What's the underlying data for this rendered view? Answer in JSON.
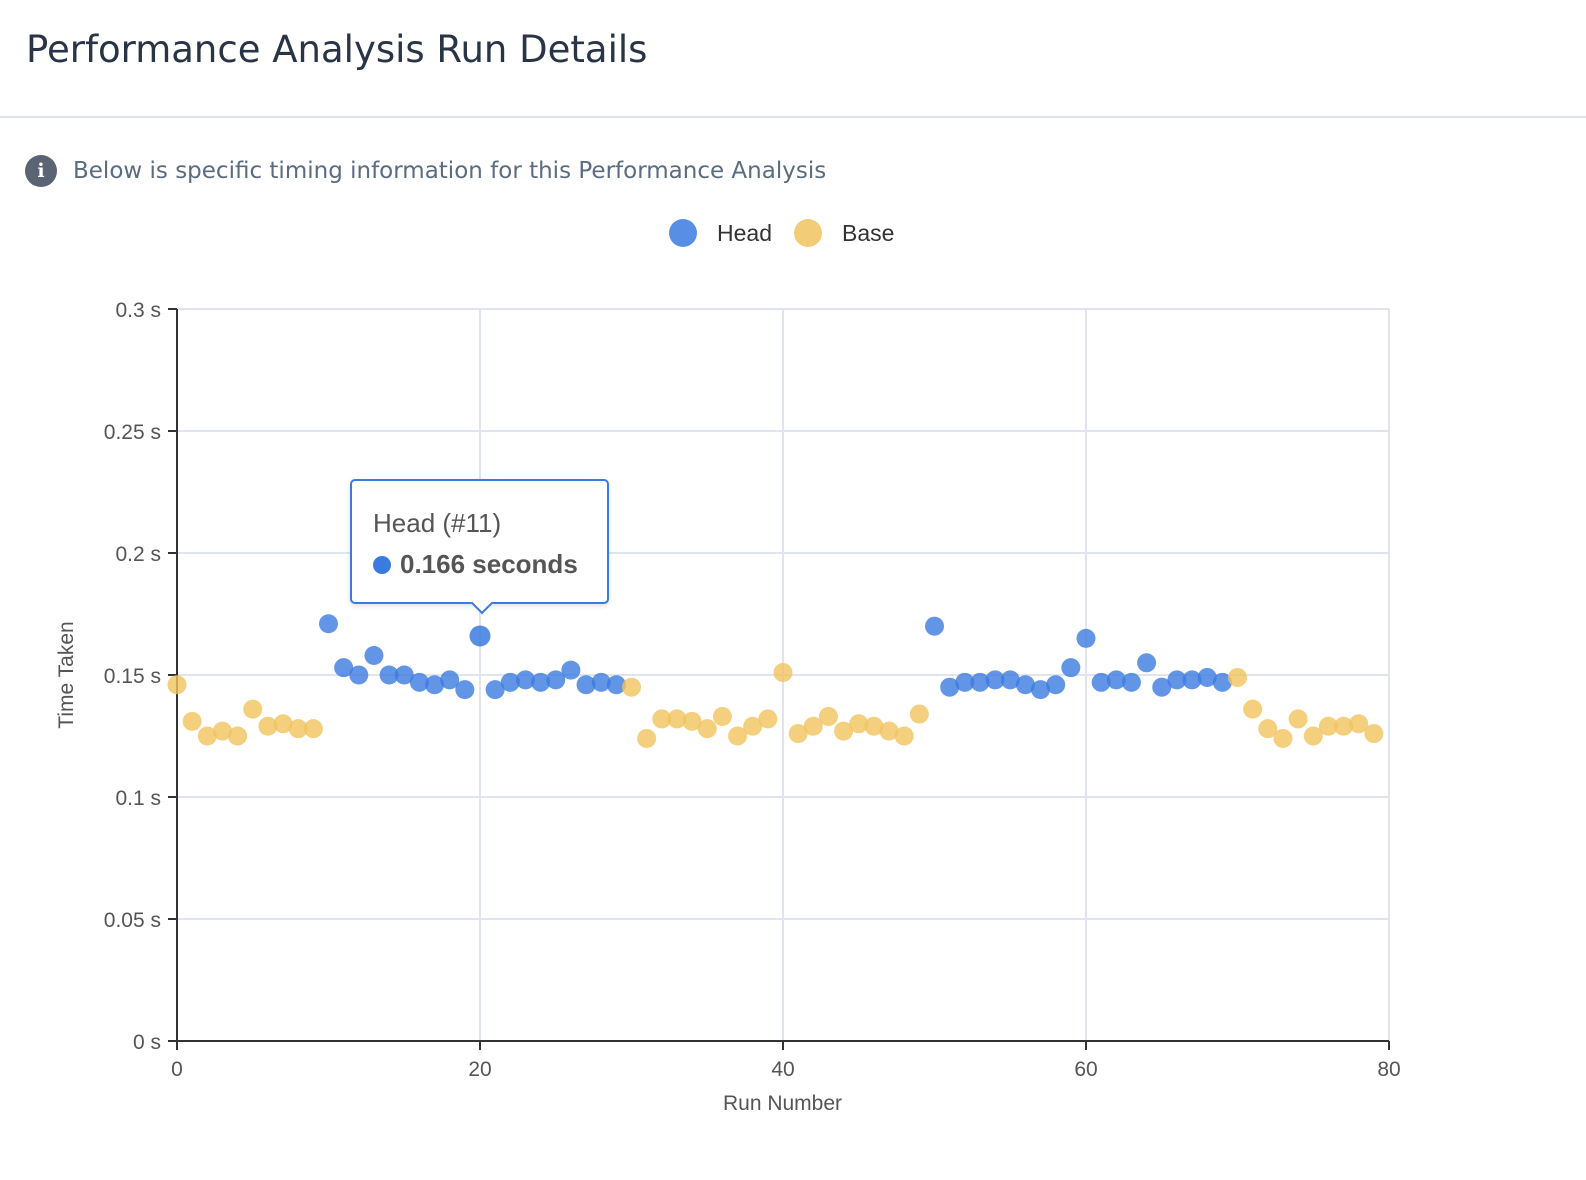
{
  "page": {
    "title": "Performance Analysis Run Details",
    "info_text": "Below is specific timing information for this Performance Analysis",
    "info_icon": "info-icon"
  },
  "tooltip": {
    "title": "Head (#11)",
    "value": "0.166 seconds"
  },
  "colors": {
    "head": "#3b7be0",
    "base": "#f0c35e",
    "grid": "#dfe4ef",
    "axis": "#333333",
    "text": "#555555"
  },
  "chart_data": {
    "type": "scatter",
    "xlabel": "Run Number",
    "ylabel": "Time Taken",
    "xlim": [
      0,
      80
    ],
    "ylim": [
      0,
      0.3
    ],
    "x_ticks": [
      0,
      20,
      40,
      60,
      80
    ],
    "x_tick_labels": [
      "0",
      "20",
      "40",
      "60",
      "80"
    ],
    "y_ticks": [
      0,
      0.05,
      0.1,
      0.15,
      0.2,
      0.25,
      0.3
    ],
    "y_tick_labels": [
      "0 s",
      "0.05 s",
      "0.1 s",
      "0.15 s",
      "0.2 s",
      "0.25 s",
      "0.3 s"
    ],
    "grid": true,
    "legend_position": "top-center",
    "series": [
      {
        "name": "Head",
        "color": "#3b7be0",
        "points": [
          [
            10,
            0.171
          ],
          [
            11,
            0.153
          ],
          [
            12,
            0.15
          ],
          [
            13,
            0.158
          ],
          [
            14,
            0.15
          ],
          [
            15,
            0.15
          ],
          [
            16,
            0.147
          ],
          [
            17,
            0.146
          ],
          [
            18,
            0.148
          ],
          [
            19,
            0.144
          ],
          [
            20,
            0.166
          ],
          [
            21,
            0.144
          ],
          [
            22,
            0.147
          ],
          [
            23,
            0.148
          ],
          [
            24,
            0.147
          ],
          [
            25,
            0.148
          ],
          [
            26,
            0.152
          ],
          [
            27,
            0.146
          ],
          [
            28,
            0.147
          ],
          [
            29,
            0.146
          ],
          [
            50,
            0.17
          ],
          [
            51,
            0.145
          ],
          [
            52,
            0.147
          ],
          [
            53,
            0.147
          ],
          [
            54,
            0.148
          ],
          [
            55,
            0.148
          ],
          [
            56,
            0.146
          ],
          [
            57,
            0.144
          ],
          [
            58,
            0.146
          ],
          [
            59,
            0.153
          ],
          [
            60,
            0.165
          ],
          [
            61,
            0.147
          ],
          [
            62,
            0.148
          ],
          [
            63,
            0.147
          ],
          [
            64,
            0.155
          ],
          [
            65,
            0.145
          ],
          [
            66,
            0.148
          ],
          [
            67,
            0.148
          ],
          [
            68,
            0.149
          ],
          [
            69,
            0.147
          ]
        ]
      },
      {
        "name": "Base",
        "color": "#f0c35e",
        "points": [
          [
            0,
            0.146
          ],
          [
            1,
            0.131
          ],
          [
            2,
            0.125
          ],
          [
            3,
            0.127
          ],
          [
            4,
            0.125
          ],
          [
            5,
            0.136
          ],
          [
            6,
            0.129
          ],
          [
            7,
            0.13
          ],
          [
            8,
            0.128
          ],
          [
            9,
            0.128
          ],
          [
            30,
            0.145
          ],
          [
            31,
            0.124
          ],
          [
            32,
            0.132
          ],
          [
            33,
            0.132
          ],
          [
            34,
            0.131
          ],
          [
            35,
            0.128
          ],
          [
            36,
            0.133
          ],
          [
            37,
            0.125
          ],
          [
            38,
            0.129
          ],
          [
            39,
            0.132
          ],
          [
            40,
            0.151
          ],
          [
            41,
            0.126
          ],
          [
            42,
            0.129
          ],
          [
            43,
            0.133
          ],
          [
            44,
            0.127
          ],
          [
            45,
            0.13
          ],
          [
            46,
            0.129
          ],
          [
            47,
            0.127
          ],
          [
            48,
            0.125
          ],
          [
            49,
            0.134
          ],
          [
            70,
            0.149
          ],
          [
            71,
            0.136
          ],
          [
            72,
            0.128
          ],
          [
            73,
            0.124
          ],
          [
            74,
            0.132
          ],
          [
            75,
            0.125
          ],
          [
            76,
            0.129
          ],
          [
            77,
            0.129
          ],
          [
            78,
            0.13
          ],
          [
            79,
            0.126
          ]
        ]
      }
    ],
    "highlighted_point": {
      "series": "Head",
      "x": 20,
      "y": 0.166
    }
  }
}
